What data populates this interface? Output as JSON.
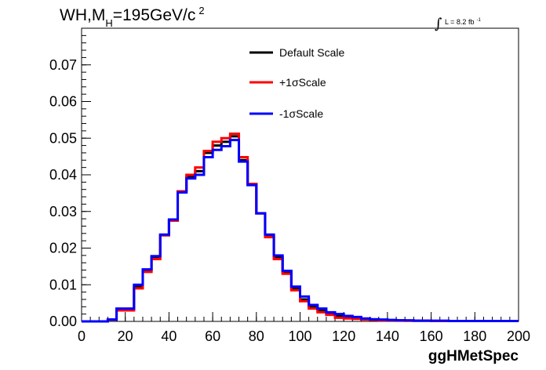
{
  "chart_data": {
    "type": "line",
    "title": {
      "main1": "WH,M",
      "sub": "H",
      "main2": "=195GeV/c",
      "sup": "2"
    },
    "luminosity": {
      "symbol": "∫",
      "text": "L = 8.2 fb",
      "sup": "-1"
    },
    "xlabel": "ggHMetSpec",
    "ylabel": "",
    "xlim": [
      0,
      200
    ],
    "ylim": [
      0,
      0.08
    ],
    "xticks": [
      0,
      20,
      40,
      60,
      80,
      100,
      120,
      140,
      160,
      180,
      200
    ],
    "xtick_labels": [
      "0",
      "20",
      "40",
      "60",
      "80",
      "100",
      "120",
      "140",
      "160",
      "180",
      "200"
    ],
    "yticks": [
      0,
      0.01,
      0.02,
      0.03,
      0.04,
      0.05,
      0.06,
      0.07
    ],
    "ytick_labels": [
      "0.00",
      "0.01",
      "0.02",
      "0.03",
      "0.04",
      "0.05",
      "0.06",
      "0.07"
    ],
    "bin_width": 4,
    "bin_edges_start": 0,
    "grid": false,
    "legend_position": "top-center",
    "series": [
      {
        "name": "Default Scale",
        "color": "#000000",
        "values": [
          0,
          0,
          0,
          0.0005,
          0.0033,
          0.0033,
          0.0095,
          0.014,
          0.0175,
          0.0235,
          0.0275,
          0.0355,
          0.0395,
          0.041,
          0.046,
          0.048,
          0.049,
          0.0505,
          0.044,
          0.0375,
          0.0295,
          0.0235,
          0.0175,
          0.0135,
          0.009,
          0.006,
          0.004,
          0.003,
          0.002,
          0.0015,
          0.001,
          0.001,
          0.0007,
          0.0005,
          0.0004,
          0.0003,
          0.0003,
          0.0002,
          0.0002,
          0.0002,
          0.0001,
          0.0001,
          0.0001,
          0.0001,
          0.0001,
          0.0001,
          0.0001,
          0.0001,
          0.0001,
          0.0001
        ]
      },
      {
        "name": "+1σScale",
        "color": "#ff0000",
        "values": [
          0,
          0,
          0,
          0.0005,
          0.003,
          0.003,
          0.009,
          0.0135,
          0.017,
          0.0235,
          0.0275,
          0.0355,
          0.04,
          0.042,
          0.0465,
          0.049,
          0.05,
          0.0512,
          0.0448,
          0.0375,
          0.0295,
          0.023,
          0.017,
          0.013,
          0.0085,
          0.0055,
          0.0035,
          0.0025,
          0.0018,
          0.001,
          0.0008,
          0.0007,
          0.0005,
          0.0004,
          0.0003,
          0.0003,
          0.0002,
          0.0002,
          0.0002,
          0.0002,
          0.0001,
          0.0001,
          0.0001,
          0.0001,
          0.0001,
          0.0001,
          0.0001,
          0.0001,
          0.0001,
          0.0001
        ]
      },
      {
        "name": "-1σScale",
        "color": "#0000ff",
        "values": [
          0,
          0,
          0,
          0.0005,
          0.0035,
          0.0035,
          0.01,
          0.0142,
          0.0178,
          0.0237,
          0.0278,
          0.0352,
          0.039,
          0.04,
          0.0448,
          0.0468,
          0.0478,
          0.0495,
          0.0436,
          0.0372,
          0.0295,
          0.0237,
          0.018,
          0.0138,
          0.0095,
          0.0068,
          0.0045,
          0.0035,
          0.0025,
          0.002,
          0.0015,
          0.0012,
          0.0008,
          0.0006,
          0.0005,
          0.0004,
          0.0003,
          0.0003,
          0.0002,
          0.0002,
          0.0002,
          0.0002,
          0.0001,
          0.0001,
          0.0001,
          0.0001,
          0.0001,
          0.0001,
          0.0001,
          0.0001
        ]
      }
    ]
  }
}
